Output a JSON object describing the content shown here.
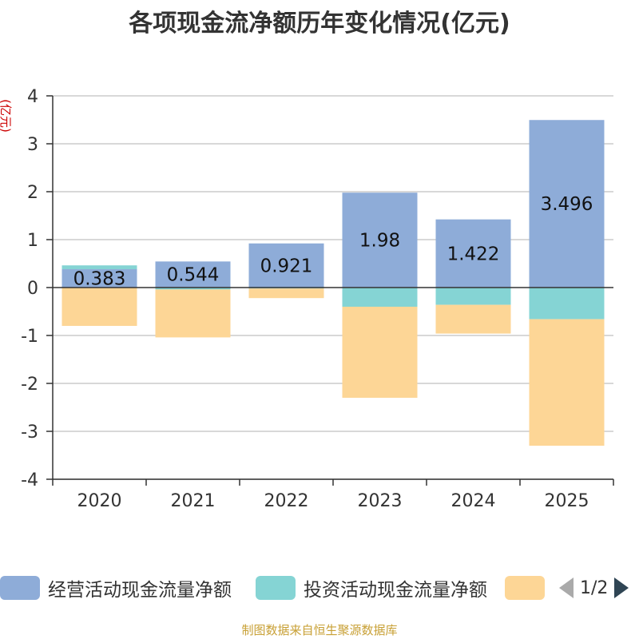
{
  "chart_data": {
    "type": "bar",
    "stacked": true,
    "title": "各项现金流净额历年变化情况(亿元)",
    "ylabel": "(亿元)",
    "xlabel": "",
    "categories": [
      "2020",
      "2021",
      "2022",
      "2023",
      "2024",
      "2025"
    ],
    "ylim": [
      -4,
      4
    ],
    "yticks": [
      4,
      3,
      2,
      1,
      0,
      -1,
      -2,
      -3,
      -4
    ],
    "ytick_labels": [
      "4",
      "3",
      "2",
      "1",
      "0",
      "-1",
      "-2",
      "-3",
      "-4"
    ],
    "series": [
      {
        "name": "经营活动现金流量净额",
        "color": "#8eacd8",
        "values": [
          0.383,
          0.544,
          0.921,
          1.98,
          1.422,
          3.496
        ],
        "labels": [
          "0.383",
          "0.544",
          "0.921",
          "1.98",
          "1.422",
          "3.496"
        ]
      },
      {
        "name": "投资活动现金流量净额",
        "color": "#85d4d4",
        "values": [
          0.08,
          -0.04,
          -0.02,
          -0.4,
          -0.36,
          -0.66
        ]
      },
      {
        "name": "",
        "color": "#fdd696",
        "values": [
          -0.8,
          -1.0,
          -0.2,
          -1.9,
          -0.6,
          -2.64
        ]
      }
    ],
    "legend": {
      "position": "bottom",
      "page": "1/2"
    }
  },
  "source": "制图数据来自恒生聚源数据库"
}
